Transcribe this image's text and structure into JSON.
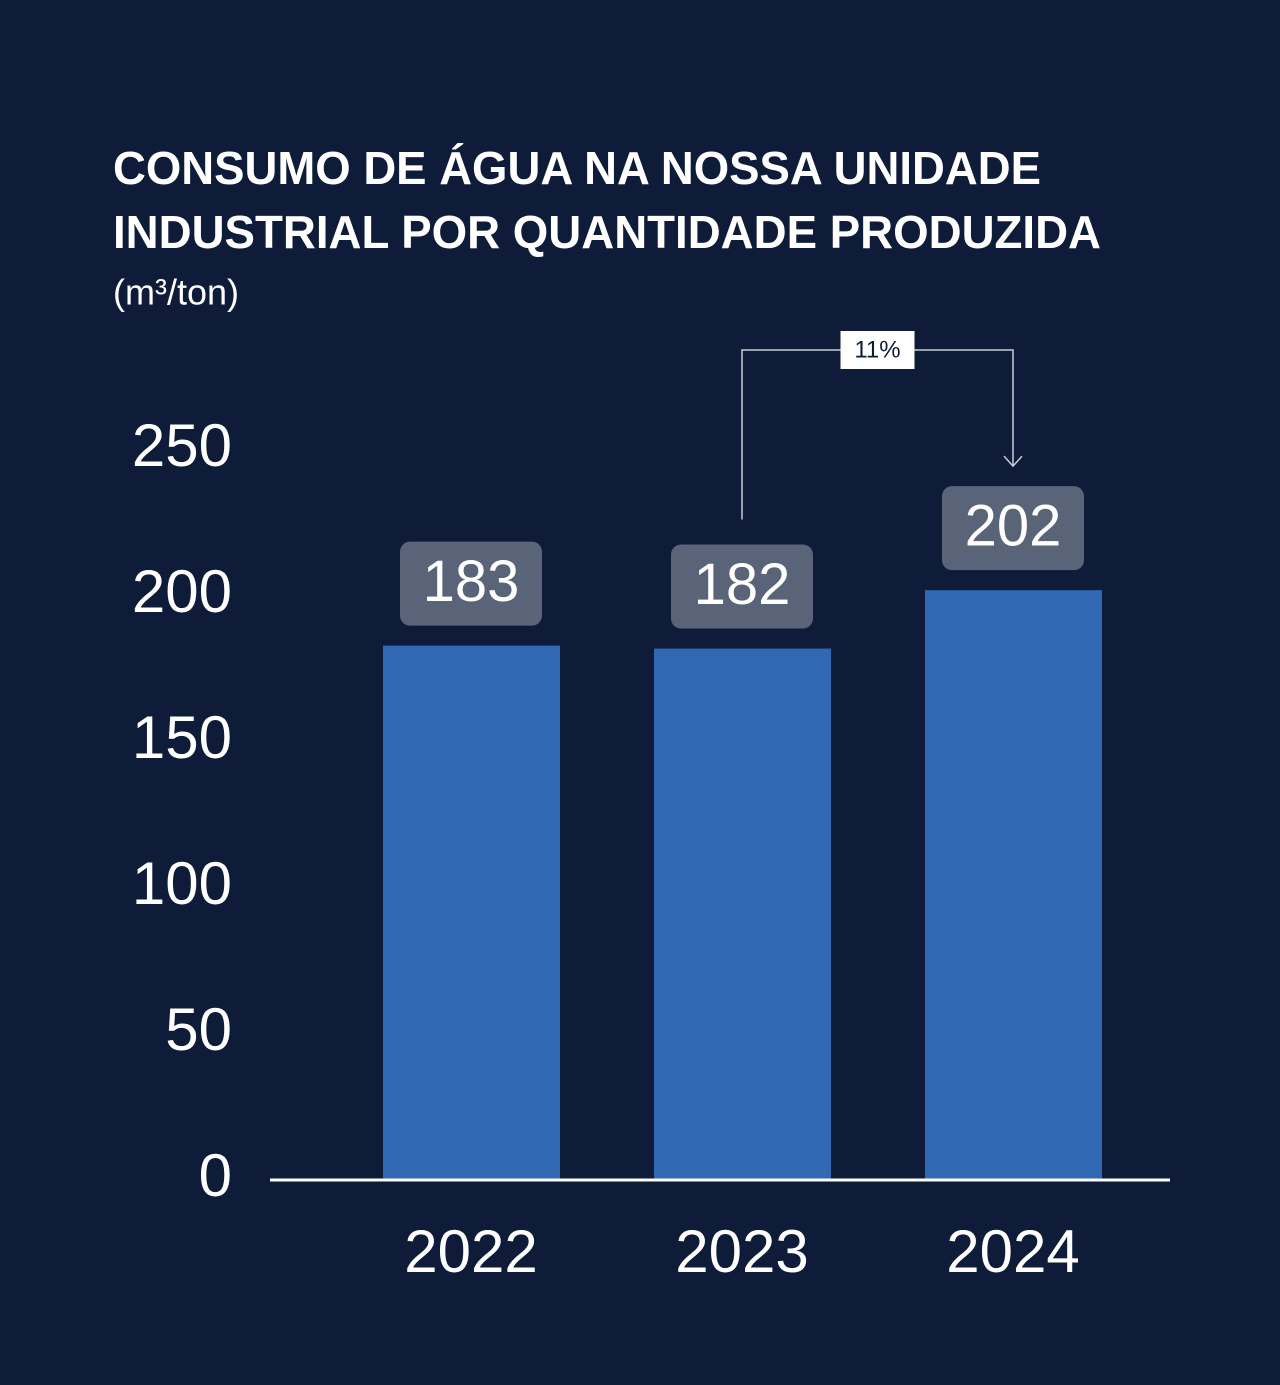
{
  "chart_data": {
    "type": "bar",
    "title": [
      "CONSUMO DE ÁGUA NA NOSSA UNIDADE",
      "INDUSTRIAL POR QUANTIDADE PRODUZIDA"
    ],
    "subtitle": "(m³/ton)",
    "categories": [
      "2022",
      "2023",
      "2024"
    ],
    "values": [
      183,
      182,
      202
    ],
    "color": "#3068b3",
    "ylim": [
      0,
      250
    ],
    "yticks": [
      0,
      50,
      100,
      150,
      200,
      250
    ],
    "grid": false,
    "annotation": "11%"
  }
}
